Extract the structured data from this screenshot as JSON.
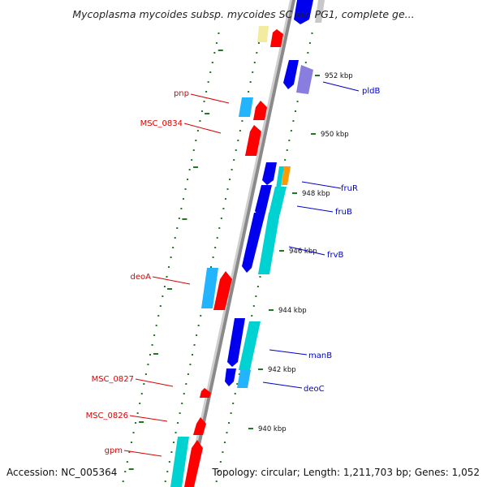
{
  "title": "Mycoplasma mycoides subsp. mycoides SC str. PG1, complete ge...",
  "accession": "Accession: NC_005364",
  "summary": "Topology: circular; Length: 1,211,703 bp; Genes: 1,052",
  "colors": {
    "backbone": "#7a7a7a",
    "forward_gene": "#ff0000",
    "reverse_gene": "#0000ee",
    "cyan_gene": "#00d2d2",
    "light_blue_gene": "#22b4ff",
    "violet_gene": "#8a7de0",
    "orange_gene": "#ff9900",
    "pale_yellow_gene": "#f3eca0",
    "tick": "#227722",
    "right_label": "#0000cc",
    "left_label": "#dd0000"
  },
  "ticks": [
    {
      "label": "952 kbp"
    },
    {
      "label": "950 kbp"
    },
    {
      "label": "948 kbp"
    },
    {
      "label": "946 kbp"
    },
    {
      "label": "944 kbp"
    },
    {
      "label": "942 kbp"
    },
    {
      "label": "940 kbp"
    }
  ],
  "right_genes": [
    {
      "name": "pldB"
    },
    {
      "name": "fruR"
    },
    {
      "name": "fruB"
    },
    {
      "name": "frvB"
    },
    {
      "name": "manB"
    },
    {
      "name": "deoC"
    }
  ],
  "left_genes": [
    {
      "name": "pnp"
    },
    {
      "name": "MSC_0834"
    },
    {
      "name": "deoA"
    },
    {
      "name": "MSC_0827"
    },
    {
      "name": "MSC_0826"
    },
    {
      "name": "gpm"
    }
  ]
}
